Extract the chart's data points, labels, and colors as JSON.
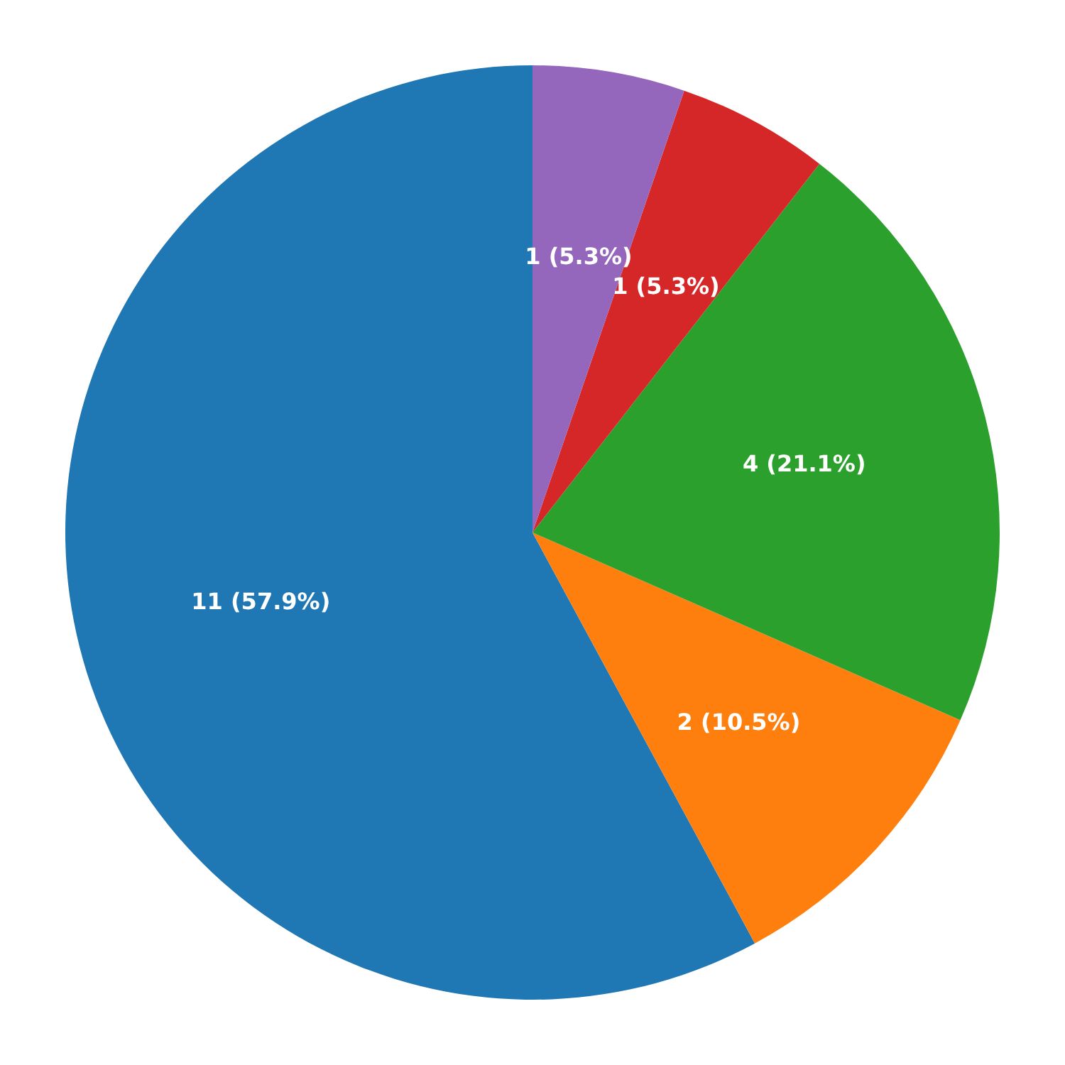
{
  "chart_data": {
    "type": "pie",
    "categories": [
      null,
      null,
      null,
      null,
      null
    ],
    "values": [
      11,
      2,
      4,
      1,
      1
    ],
    "colors": [
      "#1f77b4",
      "#ff7f0e",
      "#2ca02c",
      "#d62728",
      "#9467bd"
    ],
    "value_labels": [
      "11 (57.9%)",
      "2 (10.5%)",
      "4 (21.1%)",
      "1 (5.3%)",
      "1 (5.3%)"
    ]
  }
}
